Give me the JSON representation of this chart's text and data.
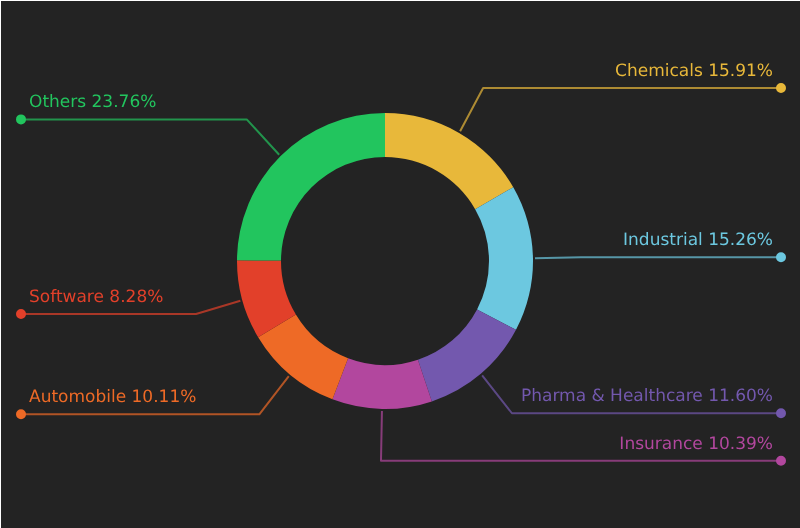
{
  "chart_data": {
    "type": "donut",
    "categories": [
      "Chemicals",
      "Industrial",
      "Pharma & Healthcare",
      "Insurance",
      "Automobile",
      "Software",
      "Others"
    ],
    "values": [
      15.91,
      15.26,
      11.6,
      10.39,
      10.11,
      8.28,
      23.76
    ],
    "value_labels": [
      "15.91%",
      "15.26%",
      "11.60%",
      "10.39%",
      "10.11%",
      "8.28%",
      "23.76%"
    ],
    "colors": [
      "#e8b83a",
      "#6cc8e0",
      "#7358ae",
      "#b2479e",
      "#ee6a26",
      "#e2402a",
      "#22c55e"
    ]
  }
}
